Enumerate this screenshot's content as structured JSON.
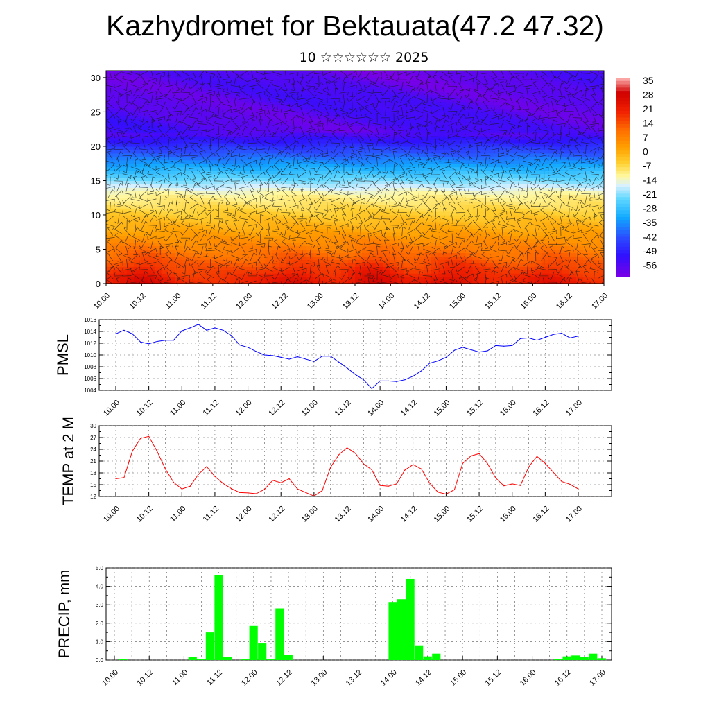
{
  "page": {
    "title": "Kazhydromet for Bektauata(47.2 47.32)",
    "subtitle": "10 ☆☆☆☆☆☆ 2025"
  },
  "chart_data": [
    {
      "type": "heatmap",
      "name": "upper-air",
      "description_source": "temperature cross-section with wind barbs",
      "x_ticks": [
        "10.00",
        "10.12",
        "11.00",
        "11.12",
        "12.00",
        "12.12",
        "13.00",
        "13.12",
        "14.00",
        "14.12",
        "15.00",
        "15.12",
        "16.00",
        "16.12",
        "17.00"
      ],
      "y_ticks": [
        0,
        5,
        10,
        15,
        20,
        25,
        30
      ],
      "ylim": [
        0,
        31
      ],
      "colorbar": {
        "labels": [
          "35",
          "28",
          "21",
          "14",
          "7",
          "0",
          "-7",
          "-14",
          "-21",
          "-28",
          "-35",
          "-42",
          "-49",
          "-56"
        ],
        "range": [
          -63,
          42
        ],
        "stops": [
          {
            "v": -63,
            "c": "#7a00e6"
          },
          {
            "v": -52,
            "c": "#3010ff"
          },
          {
            "v": -42,
            "c": "#2a50ff"
          },
          {
            "v": -32,
            "c": "#10a8ff"
          },
          {
            "v": -22,
            "c": "#60d8ff"
          },
          {
            "v": -15,
            "c": "#d8f0ff"
          },
          {
            "v": -10,
            "c": "#fff8a0"
          },
          {
            "v": -3,
            "c": "#ffd030"
          },
          {
            "v": 5,
            "c": "#ffa000"
          },
          {
            "v": 14,
            "c": "#ff7000"
          },
          {
            "v": 24,
            "c": "#f02000"
          },
          {
            "v": 34,
            "c": "#d00000"
          },
          {
            "v": 42,
            "c": "#ffb8b8"
          }
        ]
      }
    },
    {
      "type": "line",
      "ylabel": "PMSL",
      "ylim": [
        1004,
        1016
      ],
      "y_ticks": [
        1004,
        1006,
        1008,
        1010,
        1012,
        1014,
        1016
      ],
      "x_ticks": [
        "10.00",
        "10.12",
        "11.00",
        "11.12",
        "12.00",
        "12.12",
        "13.00",
        "13.12",
        "14.00",
        "14.12",
        "15.00",
        "15.12",
        "16.00",
        "16.12",
        "17.00"
      ],
      "color": "#0000ff",
      "values": [
        1013.6,
        1014.2,
        1013.6,
        1012.2,
        1011.9,
        1012.3,
        1012.5,
        1012.5,
        1014.1,
        1014.6,
        1015.2,
        1014.2,
        1014.6,
        1014.2,
        1013.3,
        1011.7,
        1011.3,
        1010.6,
        1010.0,
        1009.9,
        1009.6,
        1009.3,
        1009.7,
        1009.3,
        1008.9,
        1009.8,
        1009.8,
        1008.8,
        1007.8,
        1006.7,
        1005.8,
        1004.3,
        1005.6,
        1005.6,
        1005.5,
        1005.8,
        1006.4,
        1007.3,
        1008.6,
        1009.0,
        1009.6,
        1010.8,
        1011.3,
        1010.9,
        1010.5,
        1010.7,
        1011.6,
        1011.5,
        1011.6,
        1012.8,
        1012.9,
        1012.5,
        1013.0,
        1013.5,
        1013.7,
        1012.9,
        1013.2
      ]
    },
    {
      "type": "line",
      "ylabel": "TEMP at 2 M",
      "ylim": [
        12,
        30
      ],
      "y_ticks": [
        12,
        15,
        18,
        21,
        24,
        27,
        30
      ],
      "x_ticks": [
        "10.00",
        "10.12",
        "11.00",
        "11.12",
        "12.00",
        "12.12",
        "13.00",
        "13.12",
        "14.00",
        "14.12",
        "15.00",
        "15.12",
        "16.00",
        "16.12",
        "17.00"
      ],
      "color": "#ff0000",
      "values": [
        16.5,
        16.8,
        23.5,
        26.8,
        27.3,
        23.5,
        19.0,
        15.6,
        13.9,
        14.6,
        17.6,
        19.6,
        17.1,
        15.3,
        14.0,
        13.0,
        12.9,
        12.7,
        13.8,
        16.1,
        15.5,
        16.5,
        13.9,
        13.0,
        12.1,
        13.5,
        19.4,
        22.6,
        24.4,
        23.0,
        20.3,
        18.8,
        14.8,
        14.6,
        15.2,
        18.7,
        20.1,
        19.0,
        15.4,
        13.1,
        12.6,
        13.7,
        20.4,
        22.3,
        22.9,
        20.4,
        16.7,
        14.7,
        15.2,
        14.8,
        19.5,
        22.2,
        20.4,
        18.1,
        15.8,
        15.1,
        13.9
      ]
    },
    {
      "type": "bar",
      "ylabel": "PRECIP, mm",
      "ylim": [
        0,
        5
      ],
      "y_ticks": [
        "0.0",
        "1.0",
        "2.0",
        "3.0",
        "4.0",
        "5.0"
      ],
      "x_ticks": [
        "10.00",
        "10.12",
        "11.00",
        "11.12",
        "12.00",
        "12.12",
        "13.00",
        "13.12",
        "14.00",
        "14.12",
        "15.00",
        "15.12",
        "16.00",
        "16.12",
        "17.00"
      ],
      "color": "#00ff00",
      "values": [
        0,
        0.05,
        0,
        0,
        0,
        0,
        0,
        0,
        0,
        0.15,
        0.05,
        1.5,
        4.6,
        0.15,
        0,
        0.05,
        1.85,
        0.9,
        0.05,
        2.8,
        0.3,
        0,
        0,
        0,
        0,
        0,
        0,
        0,
        0,
        0,
        0,
        0,
        3.15,
        3.3,
        4.4,
        0.8,
        0.2,
        0.35,
        0,
        0,
        0,
        0,
        0,
        0,
        0,
        0,
        0,
        0,
        0,
        0,
        0,
        0.05,
        0.2,
        0.25,
        0.15,
        0.35,
        0.1
      ]
    }
  ]
}
